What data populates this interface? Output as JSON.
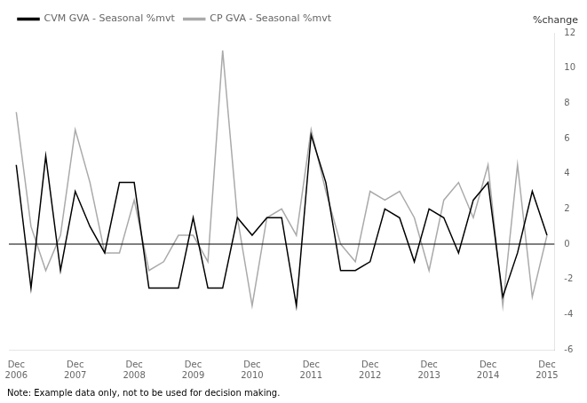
{
  "chart_data": {
    "type": "line",
    "ylabel": "%change",
    "annotations": [
      "Note: Example data only, not to be used for decision making."
    ],
    "categories": [
      "Dec\n2006",
      null,
      null,
      null,
      "Dec\n2007",
      null,
      null,
      null,
      "Dec\n2008",
      null,
      null,
      null,
      "Dec\n2009",
      null,
      null,
      null,
      "Dec\n2010",
      null,
      null,
      null,
      "Dec\n2011",
      null,
      null,
      null,
      "Dec\n2012",
      null,
      null,
      null,
      "Dec\n2013",
      null,
      null,
      null,
      "Dec\n2014",
      null,
      null,
      null,
      "Dec\n2015"
    ],
    "series": [
      {
        "name": "CVM GVA - Seasonal %mvt",
        "color": "#000000",
        "values": [
          4.5,
          -2.5,
          5.0,
          -1.5,
          3.0,
          1.0,
          -0.5,
          3.5,
          3.5,
          -2.5,
          -2.5,
          -2.5,
          1.5,
          -2.5,
          -2.5,
          1.5,
          0.5,
          1.5,
          1.5,
          -3.5,
          6.2,
          3.5,
          -1.5,
          -1.5,
          -1.0,
          2.0,
          1.5,
          -1.0,
          2.0,
          1.5,
          -0.5,
          2.5,
          3.5,
          -3.0,
          -0.5,
          3.0,
          0.5
        ]
      },
      {
        "name": "CP GVA - Seasonal %mvt",
        "color": "#aaaaaa",
        "values": [
          7.5,
          1.0,
          -1.5,
          0.5,
          6.5,
          3.5,
          -0.5,
          -0.5,
          2.5,
          -1.5,
          -1.0,
          0.5,
          0.5,
          -1.0,
          11.0,
          1.5,
          -3.5,
          1.5,
          2.0,
          0.5,
          6.5,
          3.0,
          0.0,
          -1.0,
          3.0,
          2.5,
          3.0,
          1.5,
          -1.5,
          2.5,
          3.5,
          1.5,
          4.5,
          -3.5,
          4.5,
          -3.0,
          0.5
        ]
      }
    ],
    "ylim": [
      -6,
      12
    ],
    "yticks": [
      -6,
      -4,
      -2,
      0,
      2,
      4,
      6,
      8,
      10,
      12
    ],
    "grid": false,
    "legend": "upper left"
  }
}
